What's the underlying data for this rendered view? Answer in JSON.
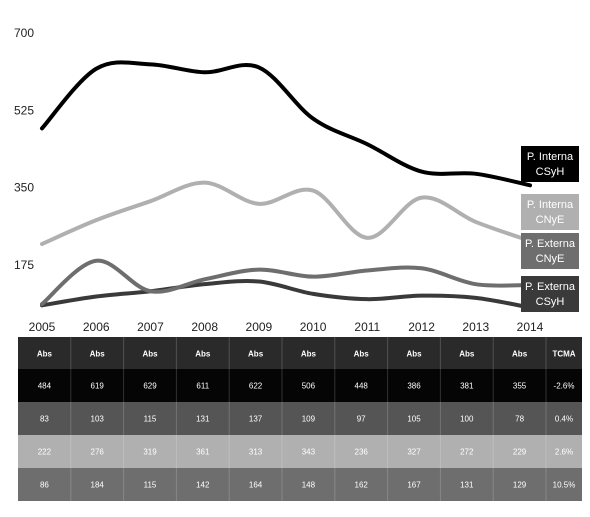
{
  "chart_data": {
    "type": "line",
    "title": "",
    "xlabel": "",
    "ylabel": "",
    "x": [
      "2005",
      "2006",
      "2007",
      "2008",
      "2009",
      "2010",
      "2011",
      "2012",
      "2013",
      "2014"
    ],
    "y_ticks": [
      "700",
      "525",
      "350",
      "175"
    ],
    "ylim": [
      0,
      700
    ],
    "grid": false,
    "series": [
      {
        "name": "P. Interna CSyH",
        "label_lines": [
          "P. Interna",
          "CSyH"
        ],
        "color": "#000000",
        "label_bg": "#000000",
        "label_fg": "#ffffff",
        "values": [
          484,
          619,
          629,
          611,
          622,
          506,
          448,
          386,
          381,
          355
        ]
      },
      {
        "name": "P. Interna CNyE",
        "label_lines": [
          "P. Interna",
          "CNyE"
        ],
        "color": "#b0b0b0",
        "label_bg": "#b0b0b0",
        "label_fg": "#ffffff",
        "values": [
          222,
          276,
          319,
          361,
          313,
          343,
          236,
          327,
          272,
          229
        ]
      },
      {
        "name": "P. Externa CNyE",
        "label_lines": [
          "P. Externa",
          "CNyE"
        ],
        "color": "#6e6e6e",
        "label_bg": "#6e6e6e",
        "label_fg": "#ffffff",
        "values": [
          86,
          184,
          115,
          142,
          164,
          148,
          162,
          167,
          131,
          129
        ]
      },
      {
        "name": "P. Externa CSyH",
        "label_lines": [
          "P. Externa",
          "CSyH"
        ],
        "color": "#3a3a3a",
        "label_bg": "#3a3a3a",
        "label_fg": "#ffffff",
        "values": [
          83,
          103,
          115,
          131,
          137,
          109,
          97,
          105,
          100,
          78
        ]
      }
    ]
  },
  "table": {
    "header": [
      "Abs",
      "Abs",
      "Abs",
      "Abs",
      "Abs",
      "Abs",
      "Abs",
      "Abs",
      "Abs",
      "Abs",
      "TCMA"
    ],
    "header_bg": "#2a2a2a",
    "rows": [
      {
        "bg": "#050505",
        "cells": [
          "484",
          "619",
          "629",
          "611",
          "622",
          "506",
          "448",
          "386",
          "381",
          "355",
          "-2.6%"
        ]
      },
      {
        "bg": "#555555",
        "cells": [
          "83",
          "103",
          "115",
          "131",
          "137",
          "109",
          "97",
          "105",
          "100",
          "78",
          "0.4%"
        ]
      },
      {
        "bg": "#b0b0b0",
        "cells": [
          "222",
          "276",
          "319",
          "361",
          "313",
          "343",
          "236",
          "327",
          "272",
          "229",
          "2.6%"
        ]
      },
      {
        "bg": "#6e6e6e",
        "cells": [
          "86",
          "184",
          "115",
          "142",
          "164",
          "148",
          "162",
          "167",
          "131",
          "129",
          "10.5%"
        ]
      }
    ]
  }
}
